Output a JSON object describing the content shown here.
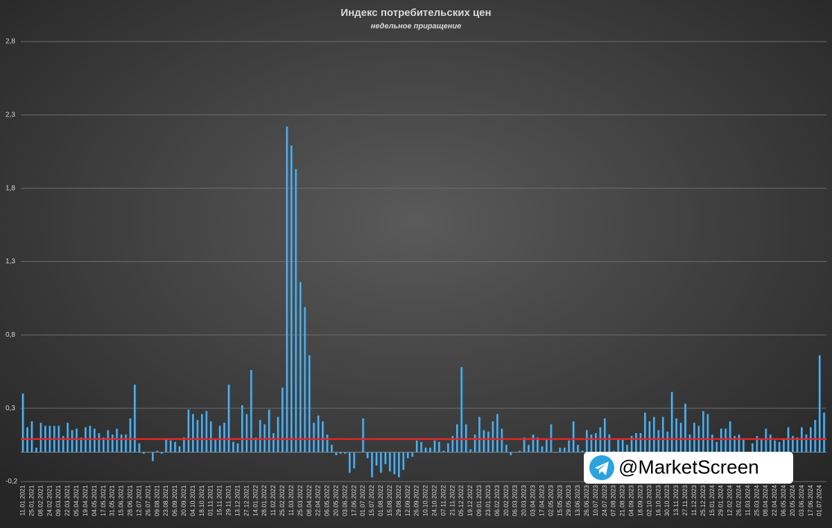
{
  "chart_data": {
    "type": "bar",
    "title": "Индекс потребительских цен",
    "subtitle": "недельное приращение",
    "watermark": "@MarketScreen",
    "color": "#29a3e8",
    "grid": true,
    "reference_line": {
      "value": 0.09,
      "color": "#e0262b"
    },
    "ylim": [
      -0.2,
      2.8
    ],
    "yticks": [
      {
        "value": -0.2,
        "label": "-0,2"
      },
      {
        "value": 0.3,
        "label": "0,3"
      },
      {
        "value": 0.8,
        "label": "0,8"
      },
      {
        "value": 1.3,
        "label": "1,3"
      },
      {
        "value": 1.8,
        "label": "1,8"
      },
      {
        "value": 2.3,
        "label": "2,3"
      },
      {
        "value": 2.8,
        "label": "2,8"
      }
    ],
    "categories": [
      "11.01.2021",
      null,
      "25.01.2021",
      null,
      "08.02.2021",
      null,
      "24.02.2021",
      null,
      "09.03.2021",
      null,
      "22.03.2021",
      null,
      "05.04.2021",
      null,
      "19.04.2021",
      null,
      "04.05.2021",
      null,
      "17.05.2021",
      null,
      "31.05.2021",
      null,
      "15.06.2021",
      null,
      "28.06.2021",
      null,
      "12.07.2021",
      null,
      "26.07.2021",
      null,
      "09.08.2021",
      null,
      "23.08.2021",
      null,
      "06.09.2021",
      null,
      "20.09.2021",
      null,
      "04.10.2021",
      null,
      "18.10.2021",
      null,
      "01.11.2021",
      null,
      "15.11.2021",
      null,
      "29.11.2021",
      null,
      "13.12.2021",
      null,
      "27.12.2021",
      null,
      "14.01.2022",
      null,
      "28.01.2022",
      null,
      "11.02.2022",
      null,
      "25.02.2022",
      null,
      "11.03.2022",
      null,
      "25.03.2022",
      null,
      "08.04.2022",
      null,
      "22.04.2022",
      null,
      "06.05.2022",
      null,
      "20.05.2022",
      null,
      "03.06.2022",
      null,
      "17.06.2022",
      null,
      "01.07.2022",
      null,
      "15.07.2022",
      null,
      "01.08.2022",
      null,
      "15.08.2022",
      null,
      "29.08.2022",
      null,
      "12.09.2022",
      null,
      "26.09.2022",
      null,
      "10.10.2022",
      null,
      "24.10.2022",
      null,
      "07.11.2022",
      null,
      "21.11.2022",
      null,
      "05.12.2022",
      null,
      "19.12.2022",
      null,
      "09.01.2023",
      null,
      "23.01.2023",
      null,
      "06.02.2023",
      null,
      "20.02.2023",
      null,
      "06.03.2023",
      null,
      "20.03.2023",
      null,
      "03.04.2023",
      null,
      "17.04.2023",
      null,
      "02.05.2023",
      null,
      "15.05.2023",
      null,
      "29.05.2023",
      null,
      "13.06.2023",
      null,
      "26.06.2023",
      null,
      "10.07.2023",
      null,
      "24.07.2023",
      null,
      "07.08.2023",
      null,
      "21.08.2023",
      null,
      "04.09.2023",
      null,
      "18.09.2023",
      null,
      "02.10.2023",
      null,
      "16.10.2023",
      null,
      "30.10.2023",
      null,
      "13.11.2023",
      null,
      "27.11.2023",
      null,
      "11.12.2023",
      null,
      "25.12.2023",
      null,
      "15.01.2024",
      null,
      "29.01.2024",
      null,
      "12.02.2024",
      null,
      "26.02.2024",
      null,
      "11.03.2024",
      null,
      "25.03.2024",
      null,
      "08.04.2024",
      null,
      "22.04.2024",
      null,
      "06.05.2024",
      null,
      "20.05.2024",
      null,
      "03.06.2024",
      null,
      "17.06.2024",
      null,
      "01.07.2024",
      null
    ],
    "values": [
      0.4,
      0.17,
      0.21,
      0.03,
      0.2,
      0.18,
      0.18,
      0.18,
      0.18,
      0.11,
      0.2,
      0.15,
      0.16,
      0.1,
      0.17,
      0.18,
      0.16,
      0.13,
      0.1,
      0.15,
      0.12,
      0.16,
      0.12,
      0.12,
      0.23,
      0.46,
      0.06,
      -0.01,
      0.0,
      -0.06,
      0.01,
      -0.01,
      0.09,
      0.08,
      0.07,
      0.04,
      0.1,
      0.29,
      0.26,
      0.22,
      0.26,
      0.28,
      0.21,
      0.09,
      0.18,
      0.2,
      0.46,
      0.07,
      0.06,
      0.32,
      0.26,
      0.56,
      0.1,
      0.22,
      0.19,
      0.29,
      0.13,
      0.24,
      0.44,
      2.22,
      2.09,
      1.93,
      1.16,
      0.99,
      0.66,
      0.2,
      0.25,
      0.21,
      0.12,
      0.05,
      -0.02,
      -0.01,
      -0.01,
      -0.14,
      -0.11,
      0.0,
      0.23,
      -0.04,
      -0.17,
      -0.09,
      -0.14,
      -0.08,
      -0.13,
      -0.15,
      -0.17,
      -0.12,
      -0.04,
      -0.03,
      0.08,
      0.07,
      0.03,
      0.03,
      0.08,
      0.07,
      0.01,
      0.06,
      0.11,
      0.19,
      0.58,
      0.19,
      0.02,
      0.12,
      0.24,
      0.15,
      0.14,
      0.21,
      0.26,
      0.16,
      0.05,
      -0.02,
      0.0,
      0.01,
      0.1,
      0.05,
      0.12,
      0.1,
      0.04,
      0.09,
      0.19,
      0.0,
      0.03,
      0.03,
      0.08,
      0.21,
      0.05,
      0.01,
      0.15,
      0.12,
      0.13,
      0.17,
      0.23,
      0.12,
      0.01,
      0.09,
      0.09,
      0.05,
      0.11,
      0.13,
      0.13,
      0.27,
      0.21,
      0.24,
      0.15,
      0.24,
      0.14,
      0.41,
      0.23,
      0.2,
      0.33,
      0.12,
      0.2,
      0.18,
      0.28,
      0.26,
      0.12,
      0.07,
      0.16,
      0.16,
      0.21,
      0.11,
      0.12,
      0.09,
      0.0,
      0.06,
      0.11,
      0.09,
      0.16,
      0.12,
      0.08,
      0.07,
      0.09,
      0.17,
      0.11,
      0.1,
      0.17,
      0.12,
      0.17,
      0.22,
      0.66,
      0.27
    ]
  }
}
